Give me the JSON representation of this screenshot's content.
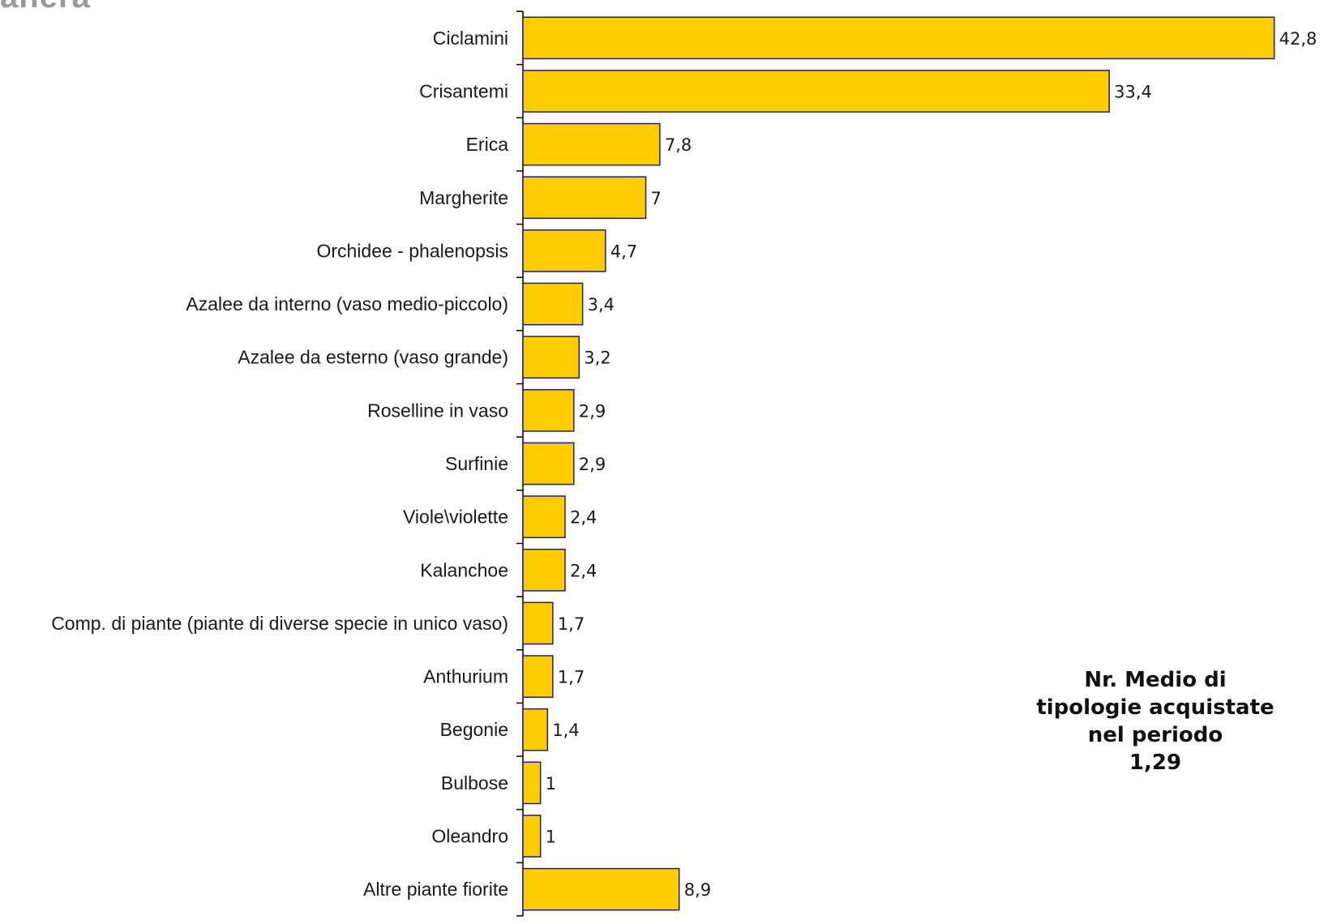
{
  "chart_data": {
    "type": "bar",
    "orientation": "horizontal",
    "categories": [
      "Ciclamini",
      "Crisantemi",
      "Erica",
      "Margherite",
      "Orchidee - phalenopsis",
      "Azalee da interno (vaso medio-piccolo)",
      "Azalee da esterno (vaso grande)",
      "Roselline in vaso",
      "Surfinie",
      "Viole\\violette",
      "Kalanchoe",
      "Comp. di piante (piante di diverse specie in unico vaso)",
      "Anthurium",
      "Begonie",
      "Bulbose",
      "Oleandro",
      "Altre piante fiorite"
    ],
    "values": [
      42.8,
      33.4,
      7.8,
      7,
      4.7,
      3.4,
      3.2,
      2.9,
      2.9,
      2.4,
      2.4,
      1.7,
      1.7,
      1.4,
      1,
      1,
      8.9
    ],
    "value_labels": [
      "42,8",
      "33,4",
      "7,8",
      "7",
      "4,7",
      "3,4",
      "3,2",
      "2,9",
      "2,9",
      "2,4",
      "2,4",
      "1,7",
      "1,7",
      "1,4",
      "1",
      "1",
      "8,9"
    ],
    "xlim": [
      0,
      43
    ],
    "bar_color": "#FFCC00",
    "bar_border_color": "#1F1F7A",
    "grid": false,
    "legend": "none"
  },
  "annotation": {
    "line1": "Nr. Medio di",
    "line2": "tipologie acquistate",
    "line3": "nel periodo",
    "line4": "1,29"
  },
  "logo_text": "anera"
}
